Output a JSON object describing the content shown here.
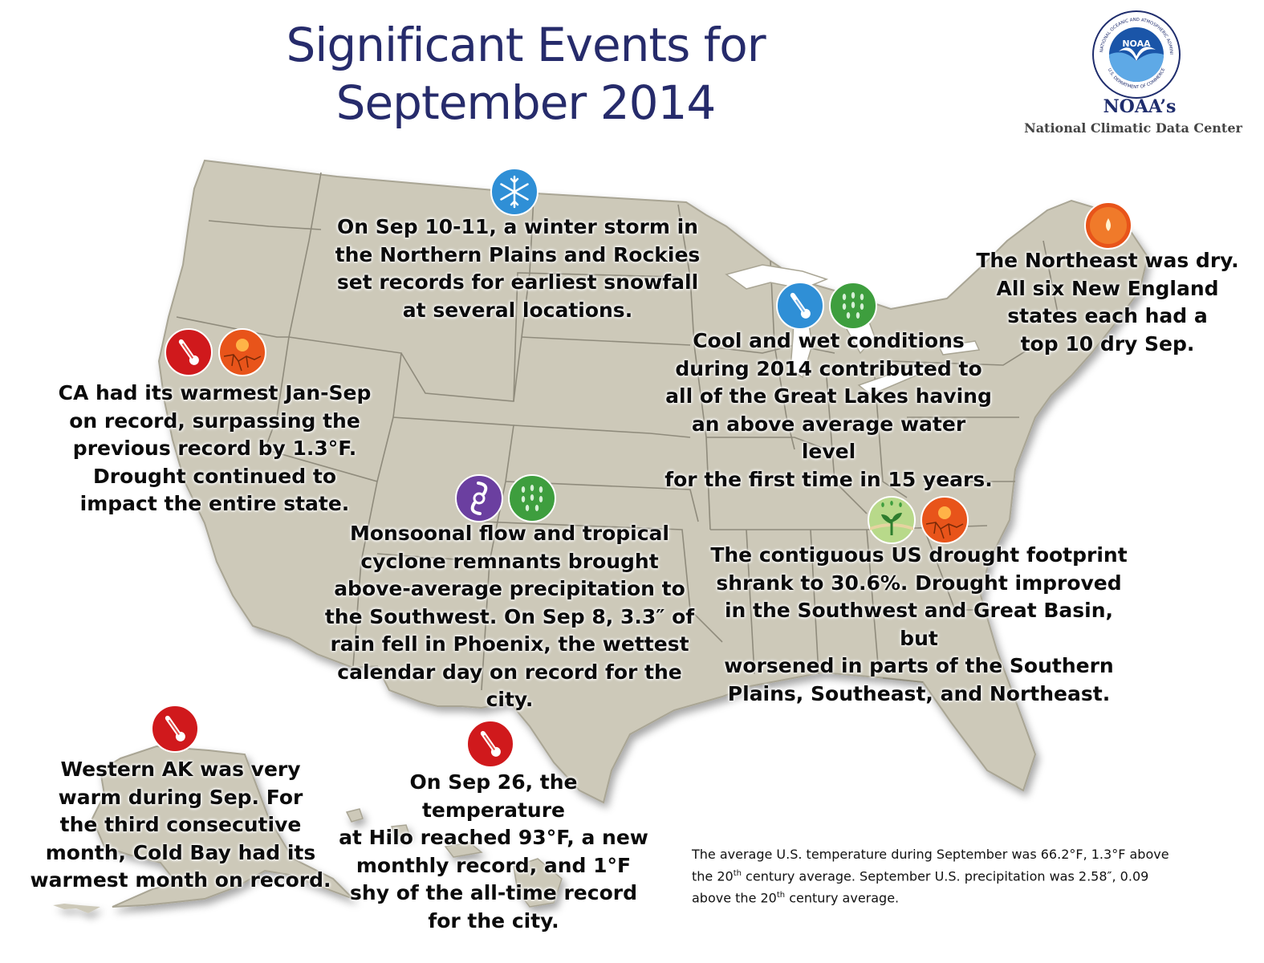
{
  "title": {
    "line1": "Significant Events for",
    "line2": "September 2014"
  },
  "logo": {
    "emblem": "NOAA",
    "ring_top": "NATIONAL OCEANIC AND ATMOSPHERIC ADMINISTRATION",
    "ring_bottom": "U.S. DEPARTMENT OF COMMERCE",
    "name": "NOAA’s",
    "center": "National Climatic Data Center"
  },
  "colors": {
    "land": "#cdc9b9",
    "border": "#8f8b7c",
    "title": "#262b6b",
    "hot": "#d0191c",
    "drought": "#e8541a",
    "cold": "#2f8fd6",
    "wet": "#3e9e3e",
    "tropical": "#6b3fa0"
  },
  "events": [
    {
      "id": "winter-storm",
      "icons": [
        "snowflake-icon"
      ],
      "lines": [
        "On Sep 10-11, a winter storm in",
        "the Northern Plains and Rockies",
        "set records for earliest snowfall",
        "at several locations."
      ]
    },
    {
      "id": "northeast-dry",
      "icons": [
        "dry-icon"
      ],
      "lines": [
        "The Northeast was dry.",
        "All six New England",
        "states each had a",
        "top 10 dry Sep."
      ]
    },
    {
      "id": "great-lakes",
      "icons": [
        "cold-thermometer-icon",
        "rain-icon"
      ],
      "lines": [
        "Cool and wet conditions",
        "during 2014 contributed to",
        "all of the Great Lakes having",
        "an above average water level",
        "for the first time in 15 years."
      ]
    },
    {
      "id": "california",
      "icons": [
        "hot-thermometer-icon",
        "drought-icon"
      ],
      "lines": [
        "CA had its warmest Jan-Sep",
        "on record, surpassing the",
        "previous record by 1.3°F.",
        "Drought continued to",
        "impact the entire state."
      ]
    },
    {
      "id": "southwest-monsoon",
      "icons": [
        "tropical-cyclone-icon",
        "rain-icon"
      ],
      "lines": [
        "Monsoonal flow and tropical",
        "cyclone remnants brought",
        "above-average precipitation to",
        "the Southwest. On Sep 8, 3.3″ of",
        "rain fell in Phoenix, the wettest",
        "calendar day on record for the city."
      ]
    },
    {
      "id": "drought-footprint",
      "icons": [
        "drought-improved-icon",
        "drought-icon"
      ],
      "lines": [
        "The contiguous US drought footprint",
        "shrank to 30.6%. Drought improved",
        "in the Southwest and Great Basin, but",
        "worsened in parts of the Southern",
        "Plains, Southeast, and Northeast."
      ]
    },
    {
      "id": "alaska",
      "icons": [
        "hot-thermometer-icon"
      ],
      "lines": [
        "Western AK was very",
        "warm during Sep. For",
        "the third consecutive",
        "month, Cold Bay had its",
        "warmest month on record."
      ]
    },
    {
      "id": "hawaii",
      "icons": [
        "hot-thermometer-icon"
      ],
      "lines": [
        "On Sep 26, the temperature",
        "at Hilo reached 93°F, a new",
        "monthly record, and 1°F",
        "shy of the all-time record",
        "for the city."
      ]
    }
  ],
  "summary": {
    "line1_before": "The average U.S. temperature during September was 66.2°F, 1.3°F above",
    "line2_pre": "the 20",
    "sup1": "th",
    "line2_post": " century average. September U.S. precipitation was 2.58″, 0.09",
    "line3_pre": "above the 20",
    "sup2": "th",
    "line3_post": " century average."
  }
}
